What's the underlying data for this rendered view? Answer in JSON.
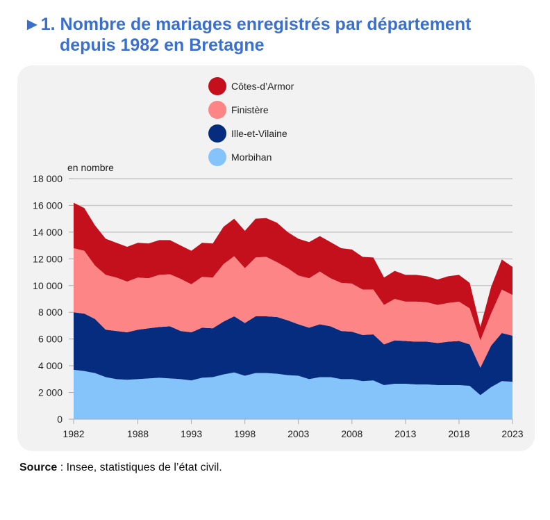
{
  "title": {
    "marker": "►",
    "line1": "1. Nombre de mariages enregistrés par département",
    "line2": "depuis 1982 en Bretagne"
  },
  "source": {
    "label": "Source",
    "text": " : Insee, statistiques de l’état civil."
  },
  "chart_data": {
    "type": "area",
    "stacked": true,
    "title": "Nombre de mariages enregistrés par département depuis 1982 en Bretagne",
    "ylabel": "en nombre",
    "xlabel": "",
    "ylim": [
      0,
      18000
    ],
    "yticks": [
      0,
      2000,
      4000,
      6000,
      8000,
      10000,
      12000,
      14000,
      16000,
      18000
    ],
    "ytick_labels": [
      "0",
      "2 000",
      "4 000",
      "6 000",
      "8 000",
      "10 000",
      "12 000",
      "14 000",
      "16 000",
      "18 000"
    ],
    "xticks": [
      1982,
      1988,
      1993,
      1998,
      2003,
      2008,
      2013,
      2018,
      2023
    ],
    "grid": true,
    "legend_position": "top-center",
    "x": [
      1982,
      1983,
      1984,
      1985,
      1986,
      1987,
      1988,
      1989,
      1990,
      1991,
      1992,
      1993,
      1994,
      1995,
      1996,
      1997,
      1998,
      1999,
      2000,
      2001,
      2002,
      2003,
      2004,
      2005,
      2006,
      2007,
      2008,
      2009,
      2010,
      2011,
      2012,
      2013,
      2014,
      2015,
      2016,
      2017,
      2018,
      2019,
      2020,
      2021,
      2022,
      2023
    ],
    "series": [
      {
        "name": "Morbihan",
        "color": "#85c3fb",
        "values": [
          3700,
          3600,
          3450,
          3150,
          3000,
          2950,
          3000,
          3050,
          3100,
          3050,
          3000,
          2900,
          3100,
          3150,
          3350,
          3500,
          3250,
          3450,
          3450,
          3400,
          3300,
          3250,
          3000,
          3150,
          3150,
          3000,
          3000,
          2850,
          2900,
          2550,
          2650,
          2650,
          2600,
          2600,
          2550,
          2550,
          2550,
          2500,
          1800,
          2400,
          2850,
          2800
        ]
      },
      {
        "name": "Ille-et-Vilaine",
        "color": "#062c7f",
        "values": [
          4300,
          4300,
          4050,
          3550,
          3600,
          3550,
          3700,
          3750,
          3800,
          3900,
          3600,
          3600,
          3750,
          3650,
          3950,
          4200,
          3950,
          4250,
          4250,
          4250,
          4100,
          3850,
          3850,
          3950,
          3800,
          3600,
          3550,
          3450,
          3450,
          3050,
          3250,
          3200,
          3200,
          3200,
          3150,
          3250,
          3300,
          3100,
          2050,
          3100,
          3600,
          3450
        ]
      },
      {
        "name": "Finistère",
        "color": "#fe8585",
        "values": [
          4800,
          4700,
          4000,
          4100,
          4000,
          3800,
          3900,
          3750,
          3900,
          3900,
          3900,
          3600,
          3800,
          3800,
          4300,
          4500,
          4100,
          4400,
          4450,
          4100,
          3900,
          3650,
          3700,
          3950,
          3600,
          3600,
          3600,
          3400,
          3350,
          2950,
          3100,
          2950,
          3000,
          2950,
          2850,
          2900,
          2950,
          2700,
          2050,
          2400,
          3250,
          3050
        ]
      },
      {
        "name": "Côtes-d’Armor",
        "color": "#c4101c",
        "values": [
          3400,
          3200,
          3000,
          2700,
          2600,
          2600,
          2600,
          2600,
          2600,
          2550,
          2500,
          2500,
          2550,
          2550,
          2800,
          2800,
          2800,
          2900,
          2900,
          2950,
          2700,
          2750,
          2700,
          2650,
          2700,
          2600,
          2550,
          2450,
          2400,
          2050,
          2100,
          2000,
          2000,
          1950,
          1900,
          2000,
          2000,
          1900,
          1000,
          2000,
          2250,
          2100
        ]
      }
    ]
  }
}
